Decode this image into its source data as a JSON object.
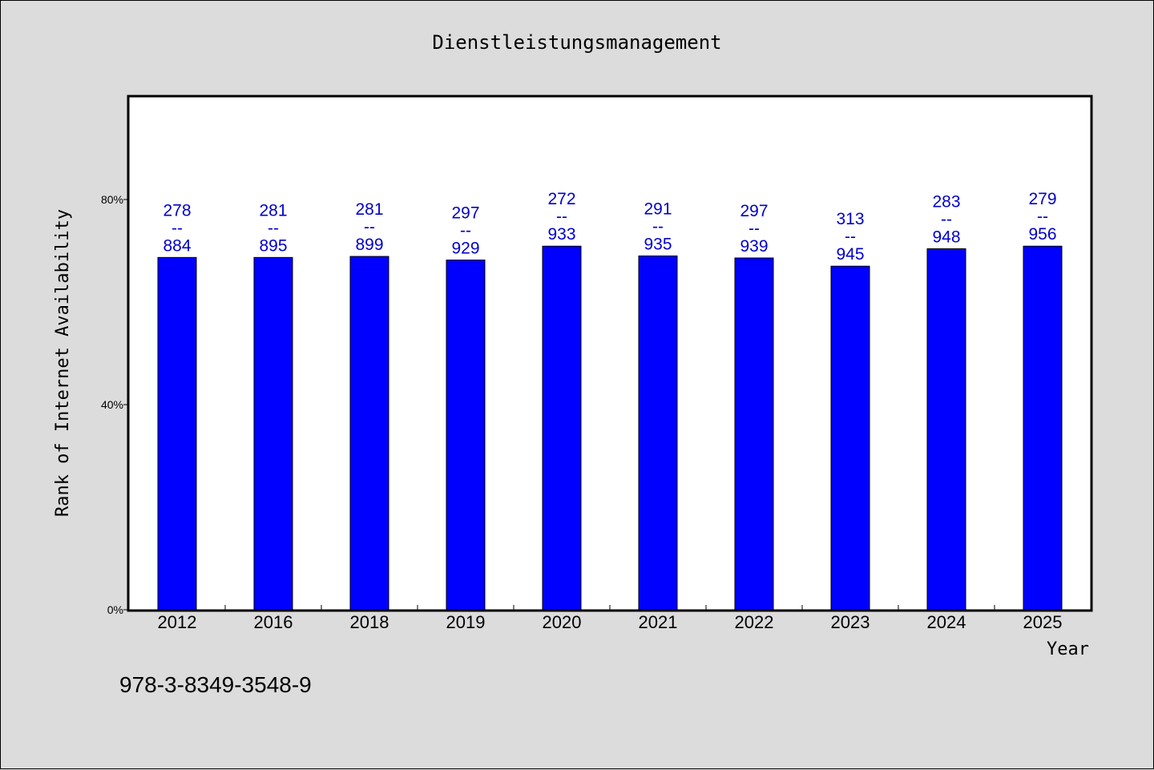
{
  "chart_data": {
    "type": "bar",
    "title": "Dienstleistungsmanagement",
    "xlabel": "Year",
    "ylabel": "Rank of Internet Availability",
    "categories": [
      "2012",
      "2016",
      "2018",
      "2019",
      "2020",
      "2021",
      "2022",
      "2023",
      "2024",
      "2025"
    ],
    "values": [
      68.7,
      68.7,
      68.9,
      68.2,
      70.9,
      69.0,
      68.6,
      67.0,
      70.4,
      70.9
    ],
    "bar_labels": [
      [
        "278",
        "--",
        "884"
      ],
      [
        "281",
        "--",
        "895"
      ],
      [
        "281",
        "--",
        "899"
      ],
      [
        "297",
        "--",
        "929"
      ],
      [
        "272",
        "--",
        "933"
      ],
      [
        "291",
        "--",
        "935"
      ],
      [
        "297",
        "--",
        "939"
      ],
      [
        "313",
        "--",
        "945"
      ],
      [
        "283",
        "--",
        "948"
      ],
      [
        "279",
        "--",
        "956"
      ]
    ],
    "ylim": [
      0,
      100
    ],
    "yticks": [
      0,
      40,
      80
    ],
    "ytick_labels": [
      "0%",
      "40%",
      "80%"
    ],
    "grid": false,
    "bar_color": "#0000ff",
    "label_color": "#0000cc"
  },
  "footer_text": "978-3-8349-3548-9"
}
